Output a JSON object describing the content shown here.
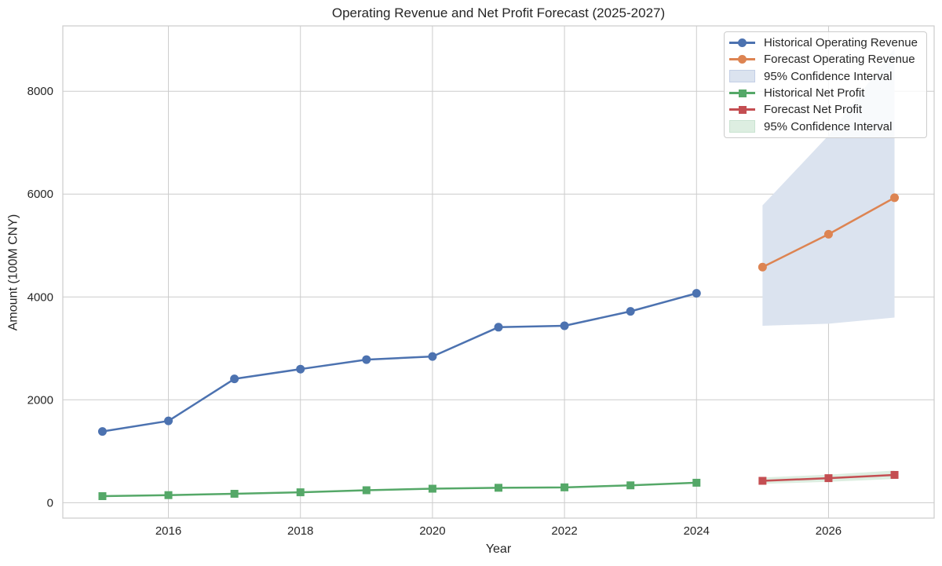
{
  "figure": {
    "title": "Operating Revenue and Net Profit Forecast (2025-2027)",
    "xlabel": "Year",
    "ylabel": "Amount (100M CNY)"
  },
  "legend": {
    "items": [
      {
        "label": "Historical Operating Revenue",
        "swatch": "line-circle",
        "color": "#4C72B0"
      },
      {
        "label": "Forecast Operating Revenue",
        "swatch": "line-circle",
        "color": "#DD8452"
      },
      {
        "label": "95% Confidence Interval",
        "swatch": "patch",
        "color": "#DBE3EF",
        "border": "#C3CFE6"
      },
      {
        "label": "Historical Net Profit",
        "swatch": "line-square",
        "color": "#55A868"
      },
      {
        "label": "Forecast Net Profit",
        "swatch": "line-square",
        "color": "#C44E52"
      },
      {
        "label": "95% Confidence Interval",
        "swatch": "patch",
        "color": "#DDEEE1",
        "border": "#C9E3D1"
      }
    ]
  },
  "chart_data": {
    "type": "line",
    "title": "Operating Revenue and Net Profit Forecast (2025-2027)",
    "xlabel": "Year",
    "ylabel": "Amount (100M CNY)",
    "xlim": [
      2014.4,
      2027.6
    ],
    "ylim": [
      -300,
      9270
    ],
    "xticks": [
      2016,
      2018,
      2020,
      2022,
      2024,
      2026
    ],
    "yticks": [
      0,
      2000,
      4000,
      6000,
      8000
    ],
    "grid": true,
    "legend_position": "upper right",
    "grid_color": "#cccccc",
    "series": [
      {
        "name": "95% Confidence Interval (Operating Revenue)",
        "type": "band",
        "color": "#DBE3EF",
        "x": [
          2025,
          2026,
          2027
        ],
        "lower": [
          3440,
          3480,
          3600
        ],
        "upper": [
          5780,
          7140,
          8830
        ]
      },
      {
        "name": "95% Confidence Interval (Net Profit)",
        "type": "band",
        "color": "#DDEEE1",
        "x": [
          2025,
          2026,
          2027
        ],
        "lower": [
          365,
          405,
          462
        ],
        "upper": [
          490,
          545,
          625
        ]
      },
      {
        "name": "Historical Operating Revenue",
        "type": "line",
        "marker": "circle",
        "color": "#4C72B0",
        "x": [
          2015,
          2016,
          2017,
          2018,
          2019,
          2020,
          2021,
          2022,
          2023,
          2024
        ],
        "y": [
          1384,
          1590,
          2407,
          2597,
          2782,
          2842,
          3412,
          3439,
          3720,
          4071
        ]
      },
      {
        "name": "Forecast Operating Revenue",
        "type": "line",
        "marker": "circle",
        "color": "#DD8452",
        "x": [
          2025,
          2026,
          2027
        ],
        "y": [
          4580,
          5220,
          5930
        ]
      },
      {
        "name": "Historical Net Profit",
        "type": "line",
        "marker": "square",
        "color": "#55A868",
        "x": [
          2015,
          2016,
          2017,
          2018,
          2019,
          2020,
          2021,
          2022,
          2023,
          2024
        ],
        "y": [
          127,
          147,
          173,
          202,
          242,
          272,
          290,
          298,
          337,
          388
        ]
      },
      {
        "name": "Forecast Net Profit",
        "type": "line",
        "marker": "square",
        "color": "#C44E52",
        "x": [
          2025,
          2026,
          2027
        ],
        "y": [
          425,
          477,
          540
        ]
      }
    ]
  }
}
